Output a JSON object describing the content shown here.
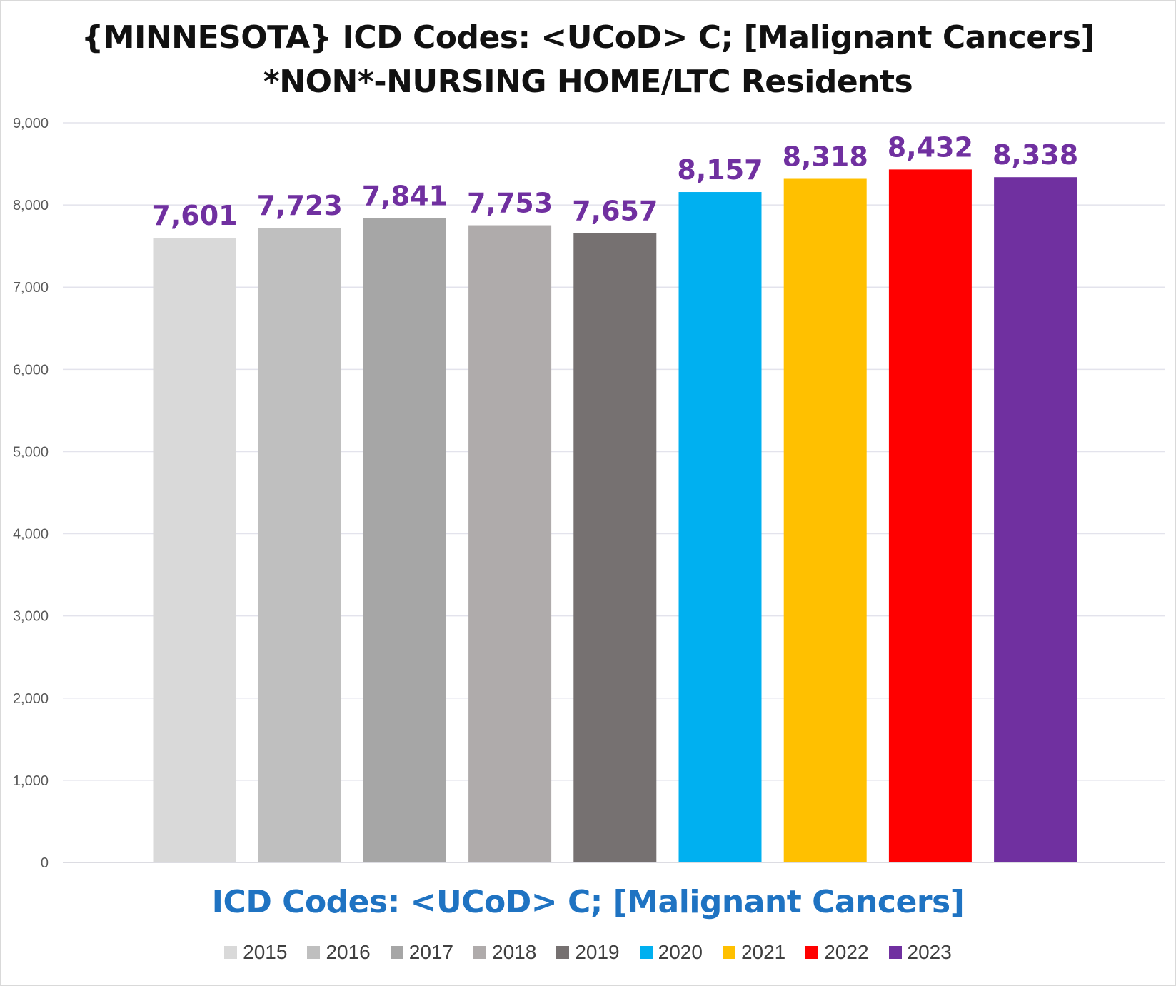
{
  "chart_data": {
    "type": "bar",
    "title_lines": [
      "{MINNESOTA}  ICD Codes: <UCoD> C;  [Malignant Cancers]",
      "*NON*-NURSING HOME/LTC Residents"
    ],
    "xlabel": "ICD Codes: <UCoD> C;  [Malignant Cancers]",
    "ylabel": "",
    "ylim": [
      0,
      9000
    ],
    "y_ticks": [
      0,
      1000,
      2000,
      3000,
      4000,
      5000,
      6000,
      7000,
      8000,
      9000
    ],
    "y_tick_labels": [
      "0",
      "1,000",
      "2,000",
      "3,000",
      "4,000",
      "5,000",
      "6,000",
      "7,000",
      "8,000",
      "9,000"
    ],
    "grid": true,
    "legend_position": "bottom",
    "series": [
      {
        "name": "2015",
        "value": 7601,
        "label": "7,601",
        "color": "#d9d9d9"
      },
      {
        "name": "2016",
        "value": 7723,
        "label": "7,723",
        "color": "#bfbfbf"
      },
      {
        "name": "2017",
        "value": 7841,
        "label": "7,841",
        "color": "#a6a6a6"
      },
      {
        "name": "2018",
        "value": 7753,
        "label": "7,753",
        "color": "#afabab"
      },
      {
        "name": "2019",
        "value": 7657,
        "label": "7,657",
        "color": "#767171"
      },
      {
        "name": "2020",
        "value": 8157,
        "label": "8,157",
        "color": "#00b0f0"
      },
      {
        "name": "2021",
        "value": 8318,
        "label": "8,318",
        "color": "#ffc000"
      },
      {
        "name": "2022",
        "value": 8432,
        "label": "8,432",
        "color": "#ff0000"
      },
      {
        "name": "2023",
        "value": 8338,
        "label": "8,338",
        "color": "#7030a0"
      }
    ],
    "data_label_color": "#7030a0"
  }
}
